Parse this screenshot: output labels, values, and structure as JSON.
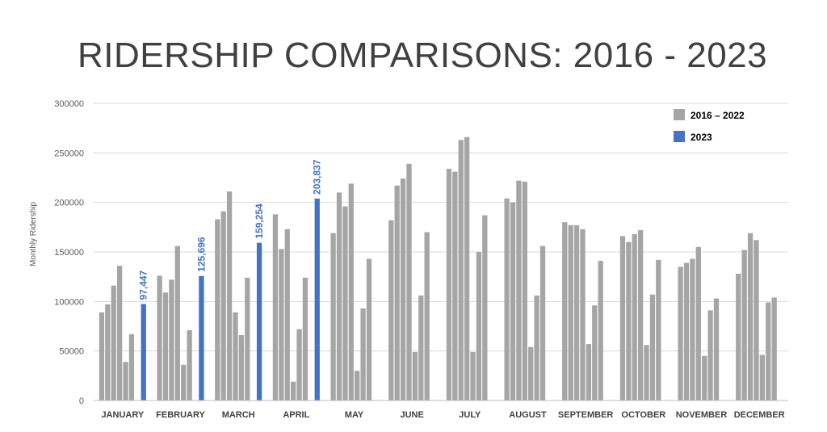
{
  "page": {
    "title": "RIDERSHIP COMPARISONS: 2016 - 2023"
  },
  "colors": {
    "history": "#A5A5A5",
    "current": "#4472C4",
    "grid": "#D9D9D9",
    "axis": "#BFBFBF"
  },
  "chart_data": {
    "type": "bar",
    "ylabel": "Monthly Ridership",
    "ylim": [
      0,
      300000
    ],
    "yticks": [
      "0",
      "50000",
      "100000",
      "150000",
      "200000",
      "250000",
      "300000"
    ],
    "grid": true,
    "legend_position": "top-right",
    "categories": [
      "JANUARY",
      "FEBRUARY",
      "MARCH",
      "APRIL",
      "MAY",
      "JUNE",
      "JULY",
      "AUGUST",
      "SEPTEMBER",
      "OCTOBER",
      "NOVEMBER",
      "DECEMBER"
    ],
    "series": [
      {
        "name": "2016 – 2022",
        "group": "history",
        "values": [
          89000,
          126000,
          183000,
          188000,
          169000,
          182000,
          234000,
          204000,
          180000,
          166000,
          135000,
          128000
        ]
      },
      {
        "name": "",
        "group": "history",
        "values": [
          97000,
          109000,
          191000,
          153000,
          210000,
          217000,
          231000,
          200000,
          177000,
          160000,
          139000,
          152000
        ]
      },
      {
        "name": "",
        "group": "history",
        "values": [
          116000,
          122000,
          211000,
          173000,
          196000,
          224000,
          263000,
          222000,
          177000,
          168000,
          143000,
          169000
        ]
      },
      {
        "name": "",
        "group": "history",
        "values": [
          136000,
          156000,
          89000,
          19000,
          219000,
          239000,
          266000,
          221000,
          173000,
          172000,
          155000,
          162000
        ]
      },
      {
        "name": "",
        "group": "history",
        "values": [
          39000,
          36000,
          66000,
          72000,
          30000,
          49000,
          49000,
          54000,
          57000,
          56000,
          45000,
          46000
        ]
      },
      {
        "name": "",
        "group": "history",
        "values": [
          67000,
          71000,
          124000,
          124000,
          93000,
          106000,
          150000,
          106000,
          96000,
          107000,
          91000,
          99000
        ]
      },
      {
        "name": "",
        "group": "history",
        "values": [
          null,
          null,
          null,
          null,
          143000,
          170000,
          187000,
          156000,
          141000,
          142000,
          103000,
          104000
        ]
      },
      {
        "name": "2023",
        "group": "current",
        "values": [
          97447,
          125696,
          159254,
          203837,
          null,
          null,
          null,
          null,
          null,
          null,
          null,
          null
        ]
      }
    ],
    "data_labels": [
      "97,447",
      "125,696",
      "159,254",
      "203,837"
    ]
  }
}
